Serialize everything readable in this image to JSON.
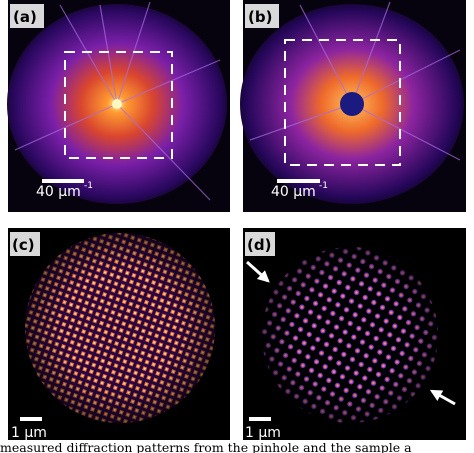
{
  "panels": [
    {
      "label": "(a)",
      "scale_text": "40 µm",
      "scale_exponent": "-1"
    },
    {
      "label": "(b)",
      "scale_text": "40 µm",
      "scale_exponent": "-1"
    },
    {
      "label": "(c)",
      "scale_text": "1 µm"
    },
    {
      "label": "(d)",
      "scale_text": "1 µm"
    }
  ],
  "caption": "measured diffraction patterns from the pinhole and the sample a"
}
